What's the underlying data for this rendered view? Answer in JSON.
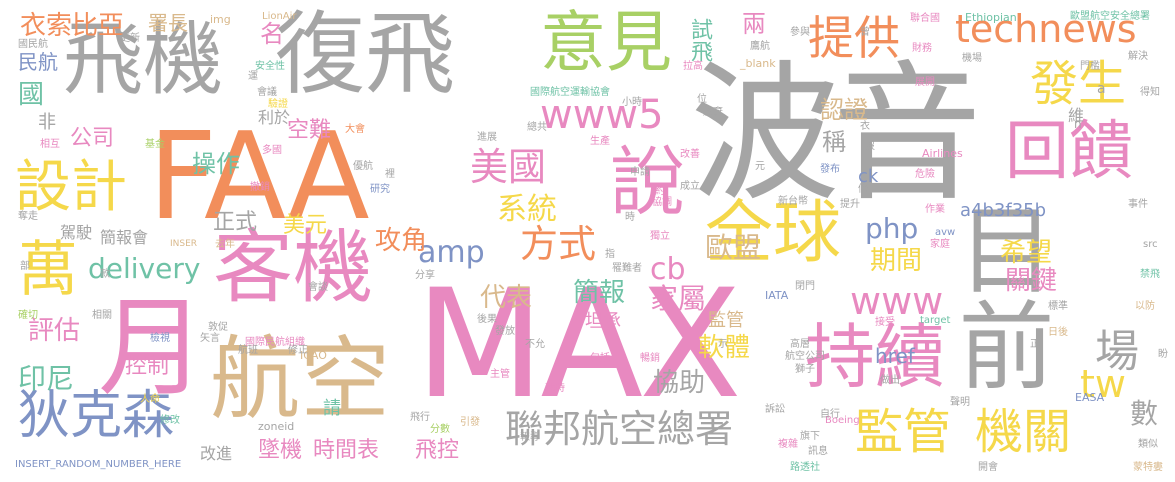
{
  "palette": {
    "orange": "#f28e5b",
    "pink": "#e889c0",
    "gray": "#a5a5a5",
    "tan": "#d9b98c",
    "yellow": "#f5d84a",
    "green": "#a8d065",
    "blue": "#7f93c5",
    "teal": "#6fc2a6"
  },
  "words": [
    {
      "text": "波音",
      "color": "gray"
    },
    {
      "text": "MAX",
      "color": "pink"
    },
    {
      "text": "FAA",
      "color": "orange"
    },
    {
      "text": "復飛",
      "color": "gray"
    },
    {
      "text": "飛機",
      "color": "gray"
    },
    {
      "text": "月",
      "color": "pink"
    },
    {
      "text": "航空",
      "color": "tan"
    },
    {
      "text": "客機",
      "color": "pink"
    },
    {
      "text": "意見",
      "color": "green"
    },
    {
      "text": "目前",
      "color": "gray"
    },
    {
      "text": "全球",
      "color": "yellow"
    },
    {
      "text": "持續",
      "color": "pink"
    },
    {
      "text": "回饋",
      "color": "pink"
    },
    {
      "text": "說",
      "color": "pink"
    },
    {
      "text": "設計",
      "color": "yellow"
    },
    {
      "text": "萬",
      "color": "yellow"
    },
    {
      "text": "technews",
      "color": "orange"
    },
    {
      "text": "提供",
      "color": "orange"
    },
    {
      "text": "發生",
      "color": "yellow"
    },
    {
      "text": "狄克森",
      "color": "blue"
    },
    {
      "text": "監管",
      "color": "yellow"
    },
    {
      "text": "機關",
      "color": "yellow"
    },
    {
      "text": "聯邦航空總署",
      "color": "gray"
    },
    {
      "text": "www5",
      "color": "pink"
    },
    {
      "text": "www",
      "color": "pink"
    },
    {
      "text": "美國",
      "color": "pink"
    },
    {
      "text": "方式",
      "color": "orange"
    },
    {
      "text": "衣索比亞",
      "color": "orange"
    },
    {
      "text": "delivery",
      "color": "teal"
    },
    {
      "text": "系統",
      "color": "yellow"
    },
    {
      "text": "場",
      "color": "gray"
    },
    {
      "text": "tw",
      "color": "yellow"
    },
    {
      "text": "php",
      "color": "blue"
    },
    {
      "text": "amp",
      "color": "blue"
    },
    {
      "text": "cb",
      "color": "pink"
    },
    {
      "text": "歐盟",
      "color": "tan"
    },
    {
      "text": "期間",
      "color": "yellow"
    },
    {
      "text": "希望",
      "color": "yellow"
    },
    {
      "text": "關鍵",
      "color": "pink"
    },
    {
      "text": "a4b3f35b",
      "color": "blue"
    },
    {
      "text": "攻角",
      "color": "orange"
    },
    {
      "text": "簡報",
      "color": "teal"
    },
    {
      "text": "家屬",
      "color": "pink"
    },
    {
      "text": "協助",
      "color": "gray"
    },
    {
      "text": "軟體",
      "color": "yellow"
    },
    {
      "text": "代表",
      "color": "tan"
    },
    {
      "text": "評估",
      "color": "pink"
    },
    {
      "text": "印尼",
      "color": "teal"
    },
    {
      "text": "控制",
      "color": "pink"
    },
    {
      "text": "墜機",
      "color": "pink"
    },
    {
      "text": "時間表",
      "color": "pink"
    },
    {
      "text": "飛控",
      "color": "pink"
    },
    {
      "text": "改進",
      "color": "gray"
    },
    {
      "text": "數",
      "color": "gray"
    },
    {
      "text": "href",
      "color": "blue"
    },
    {
      "text": "公司",
      "color": "pink"
    },
    {
      "text": "操作",
      "color": "teal"
    },
    {
      "text": "空難",
      "color": "pink"
    },
    {
      "text": "正式",
      "color": "gray"
    },
    {
      "text": "美元",
      "color": "yellow"
    },
    {
      "text": "名",
      "color": "pink"
    },
    {
      "text": "兩",
      "color": "pink"
    },
    {
      "text": "試飛",
      "color": "teal"
    },
    {
      "text": "認證",
      "color": "tan"
    },
    {
      "text": "稱",
      "color": "gray"
    },
    {
      "text": "民航",
      "color": "blue"
    },
    {
      "text": "國",
      "color": "teal"
    },
    {
      "text": "非",
      "color": "gray"
    },
    {
      "text": "署長",
      "color": "tan"
    },
    {
      "text": "簡報會",
      "color": "gray"
    },
    {
      "text": "駕駛",
      "color": "gray"
    },
    {
      "text": "利於",
      "color": "gray"
    },
    {
      "text": "ck",
      "color": "blue"
    },
    {
      "text": "坦承",
      "color": "pink"
    },
    {
      "text": "監管",
      "color": "tan"
    },
    {
      "text": "請",
      "color": "teal"
    },
    {
      "text": "INSERT_RANDOM_NUMBER_HERE",
      "color": "blue"
    },
    {
      "text": "zoneid",
      "color": "gray"
    },
    {
      "text": "ICAO",
      "color": "tan"
    },
    {
      "text": "IATA",
      "color": "blue"
    },
    {
      "text": "EASA",
      "color": "blue"
    },
    {
      "text": "Ethiopian",
      "color": "teal"
    },
    {
      "text": "Airlines",
      "color": "pink"
    },
    {
      "text": "Boeing",
      "color": "pink"
    },
    {
      "text": "target",
      "color": "teal"
    },
    {
      "text": "_blank",
      "color": "tan"
    },
    {
      "text": "LionAir",
      "color": "tan"
    },
    {
      "text": "img",
      "color": "tan"
    },
    {
      "text": "src",
      "color": "gray"
    },
    {
      "text": "avw",
      "color": "blue"
    },
    {
      "text": "INSER",
      "color": "tan"
    },
    {
      "text": "歐盟航空安全總署",
      "color": "teal"
    },
    {
      "text": "國際民航組織",
      "color": "pink"
    },
    {
      "text": "國際航空運輸協會",
      "color": "teal"
    },
    {
      "text": "航空公司",
      "color": "gray"
    },
    {
      "text": "聯合國",
      "color": "pink"
    },
    {
      "text": "新台幣",
      "color": "gray"
    },
    {
      "text": "獨立",
      "color": "pink"
    },
    {
      "text": "暢銷",
      "color": "pink"
    },
    {
      "text": "耗時",
      "color": "pink"
    },
    {
      "text": "危險",
      "color": "pink"
    },
    {
      "text": "禁飛",
      "color": "teal"
    },
    {
      "text": "家庭",
      "color": "pink"
    },
    {
      "text": "事件",
      "color": "gray"
    },
    {
      "text": "展開",
      "color": "pink"
    },
    {
      "text": "解決",
      "color": "gray"
    },
    {
      "text": "鷹航",
      "color": "gray"
    },
    {
      "text": "大會",
      "color": "orange"
    },
    {
      "text": "生產",
      "color": "pink"
    },
    {
      "text": "改善",
      "color": "pink"
    },
    {
      "text": "安全性",
      "color": "teal"
    },
    {
      "text": "會議",
      "color": "gray"
    },
    {
      "text": "驗證",
      "color": "yellow"
    },
    {
      "text": "基金",
      "color": "green"
    },
    {
      "text": "相互",
      "color": "pink"
    },
    {
      "text": "撤銷",
      "color": "pink"
    },
    {
      "text": "研究",
      "color": "blue"
    },
    {
      "text": "發布",
      "color": "blue"
    },
    {
      "text": "成立",
      "color": "gray"
    },
    {
      "text": "協調",
      "color": "pink"
    },
    {
      "text": "報導",
      "color": "gray"
    },
    {
      "text": "飛行",
      "color": "gray"
    },
    {
      "text": "引發",
      "color": "tan"
    },
    {
      "text": "分數",
      "color": "green"
    },
    {
      "text": "修改",
      "color": "teal"
    },
    {
      "text": "人命",
      "color": "yellow"
    },
    {
      "text": "主管",
      "color": "pink"
    },
    {
      "text": "包括",
      "color": "pink"
    },
    {
      "text": "不允",
      "color": "gray"
    },
    {
      "text": "後果",
      "color": "gray"
    },
    {
      "text": "發放",
      "color": "gray"
    },
    {
      "text": "敦促",
      "color": "gray"
    },
    {
      "text": "檢視",
      "color": "blue"
    },
    {
      "text": "相關",
      "color": "gray"
    },
    {
      "text": "確切",
      "color": "green"
    },
    {
      "text": "旗下",
      "color": "gray"
    },
    {
      "text": "訊息",
      "color": "gray"
    },
    {
      "text": "路透社",
      "color": "teal"
    },
    {
      "text": "開會",
      "color": "gray"
    },
    {
      "text": "蒙特婁",
      "color": "tan"
    },
    {
      "text": "類似",
      "color": "gray"
    },
    {
      "text": "聲明",
      "color": "gray"
    },
    {
      "text": "做出",
      "color": "gray"
    },
    {
      "text": "以防",
      "color": "tan"
    },
    {
      "text": "標準",
      "color": "gray"
    },
    {
      "text": "日後",
      "color": "tan"
    },
    {
      "text": "接受",
      "color": "pink"
    },
    {
      "text": "閉門",
      "color": "gray"
    },
    {
      "text": "複雜",
      "color": "pink"
    },
    {
      "text": "獅子",
      "color": "gray"
    },
    {
      "text": "高層",
      "color": "gray"
    },
    {
      "text": "財務",
      "color": "pink"
    },
    {
      "text": "參與",
      "color": "gray"
    },
    {
      "text": "更新",
      "color": "gray"
    },
    {
      "text": "拉高",
      "color": "pink"
    },
    {
      "text": "裡",
      "color": "gray"
    },
    {
      "text": "去年",
      "color": "tan"
    },
    {
      "text": "總共",
      "color": "gray"
    },
    {
      "text": "進展",
      "color": "gray"
    },
    {
      "text": "得知",
      "color": "gray"
    },
    {
      "text": "維",
      "color": "gray"
    },
    {
      "text": "示",
      "color": "gray"
    },
    {
      "text": "作業",
      "color": "pink"
    },
    {
      "text": "自行",
      "color": "gray"
    },
    {
      "text": "訴訟",
      "color": "gray"
    },
    {
      "text": "多國",
      "color": "pink"
    },
    {
      "text": "會談",
      "color": "gray"
    },
    {
      "text": "申請",
      "color": "gray"
    },
    {
      "text": "放棄",
      "color": "gray"
    },
    {
      "text": "提升",
      "color": "gray"
    },
    {
      "text": "元",
      "color": "gray"
    },
    {
      "text": "罹難者",
      "color": "gray"
    },
    {
      "text": "小時",
      "color": "gray"
    },
    {
      "text": "門檻",
      "color": "gray"
    },
    {
      "text": "機場",
      "color": "gray"
    },
    {
      "text": "時",
      "color": "gray"
    },
    {
      "text": "指",
      "color": "gray"
    },
    {
      "text": "約",
      "color": "pink"
    },
    {
      "text": "條",
      "color": "gray"
    },
    {
      "text": "正",
      "color": "gray"
    },
    {
      "text": "沒",
      "color": "gray"
    },
    {
      "text": "曾",
      "color": "gray"
    },
    {
      "text": "位",
      "color": "gray"
    },
    {
      "text": "衣",
      "color": "gray"
    },
    {
      "text": "n",
      "color": "gray"
    },
    {
      "text": "a",
      "color": "gray"
    },
    {
      "text": "奪走",
      "color": "gray"
    },
    {
      "text": "運",
      "color": "gray"
    },
    {
      "text": "國民航",
      "color": "gray"
    },
    {
      "text": "航班",
      "color": "gray"
    },
    {
      "text": "修正",
      "color": "gray"
    },
    {
      "text": "分享",
      "color": "gray"
    },
    {
      "text": "矢言",
      "color": "gray"
    },
    {
      "text": "盼",
      "color": "gray"
    },
    {
      "text": "款",
      "color": "gray"
    },
    {
      "text": "部",
      "color": "gray"
    },
    {
      "text": "優航",
      "color": "gray"
    }
  ]
}
